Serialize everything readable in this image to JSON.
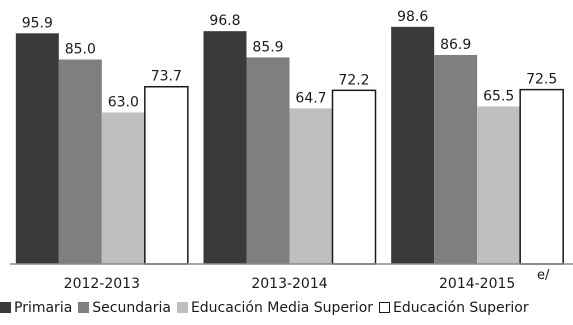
{
  "chart_data": {
    "type": "bar",
    "categories": [
      "2012-2013",
      "2013-2014",
      "2014-2015"
    ],
    "series": [
      {
        "name": "Primaria",
        "values": [
          95.9,
          96.8,
          98.6
        ],
        "color": "#3a3a3a",
        "stroke": "#3a3a3a"
      },
      {
        "name": "Secundaria",
        "values": [
          85.0,
          85.9,
          86.9
        ],
        "color": "#7f7f7f",
        "stroke": "#7f7f7f"
      },
      {
        "name": "Educación Media Superior",
        "values": [
          63.0,
          64.7,
          65.5
        ],
        "color": "#bfbfbf",
        "stroke": "#bfbfbf"
      },
      {
        "name": "Educación Superior",
        "values": [
          73.7,
          72.2,
          72.5
        ],
        "color": "#ffffff",
        "stroke": "#1a1a1a"
      }
    ],
    "value_labels": [
      [
        "95.9",
        "85.0",
        "63.0",
        "73.7"
      ],
      [
        "96.8",
        "85.9",
        "64.7",
        "72.2"
      ],
      [
        "98.6",
        "86.9",
        "65.5",
        "72.5"
      ]
    ],
    "footnote": "e/",
    "ylim": [
      0,
      100
    ],
    "grid": false,
    "legend_position": "bottom",
    "xlabel": "",
    "ylabel": "",
    "title": ""
  }
}
